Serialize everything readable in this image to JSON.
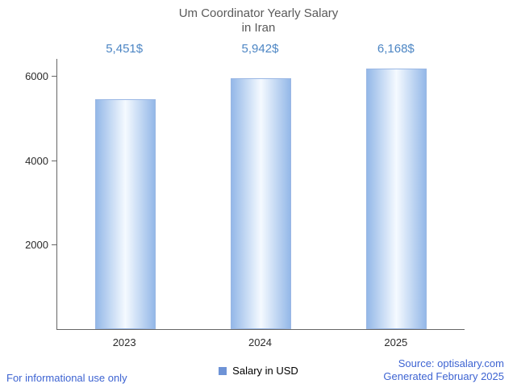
{
  "title": {
    "line1": "Um Coordinator Yearly Salary",
    "line2": "in Iran"
  },
  "chart_data": {
    "type": "bar",
    "title": "Um Coordinator Yearly Salary in Iran",
    "categories": [
      "2023",
      "2024",
      "2025"
    ],
    "values": [
      5451,
      5942,
      6168
    ],
    "value_labels": [
      "5,451$",
      "5,942$",
      "6,168$"
    ],
    "ylim": [
      0,
      6400
    ],
    "yticks": [
      2000,
      4000,
      6000
    ],
    "grid": false,
    "legend": {
      "label": "Salary in USD",
      "position": "bottom",
      "color": "#6e93d6"
    },
    "bar_colors": {
      "edge": "#94b8e8",
      "center": "#f5faff",
      "border": "#9ab7e4"
    },
    "value_label_color": "#4d86c4"
  },
  "footer": {
    "left": "For informational use only",
    "source": "Source: optisalary.com",
    "generated": "Generated February 2025",
    "link_color": "#3e64d2"
  }
}
